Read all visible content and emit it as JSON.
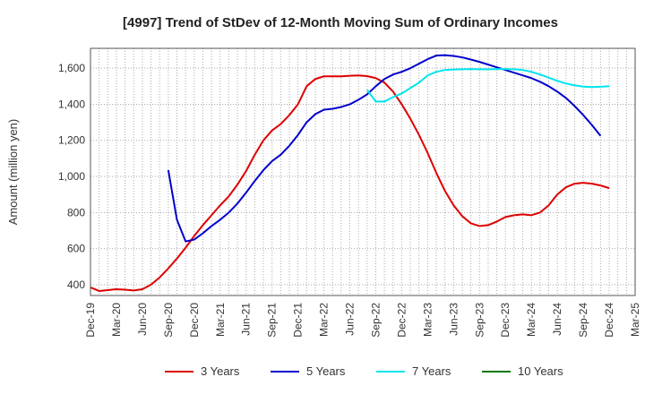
{
  "chart_data": {
    "type": "line",
    "title": "[4997]  Trend of StDev of 12-Month Moving Sum of Ordinary Incomes",
    "ylabel": "Amount (million yen)",
    "xlabel": "",
    "ylim": [
      340,
      1710
    ],
    "yticks": [
      400,
      600,
      800,
      1000,
      1200,
      1400,
      1600
    ],
    "ytick_labels": [
      "400",
      "600",
      "800",
      "1,000",
      "1,200",
      "1,400",
      "1,600"
    ],
    "x_categories": [
      "Dec-19",
      "Jan-20",
      "Feb-20",
      "Mar-20",
      "Apr-20",
      "May-20",
      "Jun-20",
      "Jul-20",
      "Aug-20",
      "Sep-20",
      "Oct-20",
      "Nov-20",
      "Dec-20",
      "Jan-21",
      "Feb-21",
      "Mar-21",
      "Apr-21",
      "May-21",
      "Jun-21",
      "Jul-21",
      "Aug-21",
      "Sep-21",
      "Oct-21",
      "Nov-21",
      "Dec-21",
      "Jan-22",
      "Feb-22",
      "Mar-22",
      "Apr-22",
      "May-22",
      "Jun-22",
      "Jul-22",
      "Aug-22",
      "Sep-22",
      "Oct-22",
      "Nov-22",
      "Dec-22",
      "Jan-23",
      "Feb-23",
      "Mar-23",
      "Apr-23",
      "May-23",
      "Jun-23",
      "Jul-23",
      "Aug-23",
      "Sep-23",
      "Oct-23",
      "Nov-23",
      "Dec-23",
      "Jan-24",
      "Feb-24",
      "Mar-24",
      "Apr-24",
      "May-24",
      "Jun-24",
      "Jul-24",
      "Aug-24",
      "Sep-24",
      "Oct-24",
      "Nov-24",
      "Dec-24",
      "Jan-25",
      "Feb-25",
      "Mar-25"
    ],
    "x_tick_labels": [
      "Dec-19",
      "Mar-20",
      "Jun-20",
      "Sep-20",
      "Dec-20",
      "Mar-21",
      "Jun-21",
      "Sep-21",
      "Dec-21",
      "Mar-22",
      "Jun-22",
      "Sep-22",
      "Dec-22",
      "Mar-23",
      "Jun-23",
      "Sep-23",
      "Dec-23",
      "Mar-24",
      "Jun-24",
      "Sep-24",
      "Dec-24",
      "Mar-25"
    ],
    "grid": true,
    "legend_position": "bottom",
    "series": [
      {
        "name": "3 Years",
        "color": "#dd0000",
        "values": [
          385,
          365,
          370,
          375,
          372,
          368,
          375,
          400,
          440,
          490,
          545,
          605,
          670,
          730,
          785,
          840,
          890,
          955,
          1030,
          1120,
          1200,
          1255,
          1290,
          1340,
          1400,
          1500,
          1540,
          1555,
          1555,
          1555,
          1558,
          1560,
          1556,
          1545,
          1520,
          1470,
          1400,
          1320,
          1230,
          1130,
          1020,
          920,
          840,
          780,
          740,
          725,
          730,
          750,
          775,
          785,
          790,
          785,
          800,
          840,
          900,
          940,
          960,
          965,
          960,
          950,
          935,
          null,
          null,
          null
        ]
      },
      {
        "name": "5 Years",
        "color": "#0000cc",
        "values": [
          null,
          null,
          null,
          null,
          null,
          null,
          null,
          null,
          null,
          1035,
          760,
          640,
          650,
          685,
          725,
          760,
          800,
          850,
          910,
          975,
          1035,
          1085,
          1120,
          1170,
          1230,
          1300,
          1345,
          1370,
          1375,
          1385,
          1400,
          1425,
          1455,
          1500,
          1540,
          1565,
          1580,
          1600,
          1625,
          1650,
          1670,
          1672,
          1668,
          1660,
          1648,
          1635,
          1620,
          1605,
          1590,
          1575,
          1560,
          1545,
          1525,
          1500,
          1470,
          1435,
          1390,
          1340,
          1285,
          1225,
          null,
          null,
          null,
          null
        ]
      },
      {
        "name": "7 Years",
        "color": "#00e5ee",
        "values": [
          null,
          null,
          null,
          null,
          null,
          null,
          null,
          null,
          null,
          null,
          null,
          null,
          null,
          null,
          null,
          null,
          null,
          null,
          null,
          null,
          null,
          null,
          null,
          null,
          null,
          null,
          null,
          null,
          null,
          null,
          null,
          null,
          1480,
          1415,
          1415,
          1440,
          1460,
          1490,
          1520,
          1560,
          1580,
          1590,
          1593,
          1594,
          1595,
          1594,
          1594,
          1595,
          1595,
          1594,
          1590,
          1580,
          1565,
          1548,
          1530,
          1515,
          1505,
          1498,
          1495,
          1497,
          1500,
          null,
          null,
          null
        ]
      },
      {
        "name": "10 Years",
        "color": "#007700",
        "values": []
      }
    ]
  }
}
